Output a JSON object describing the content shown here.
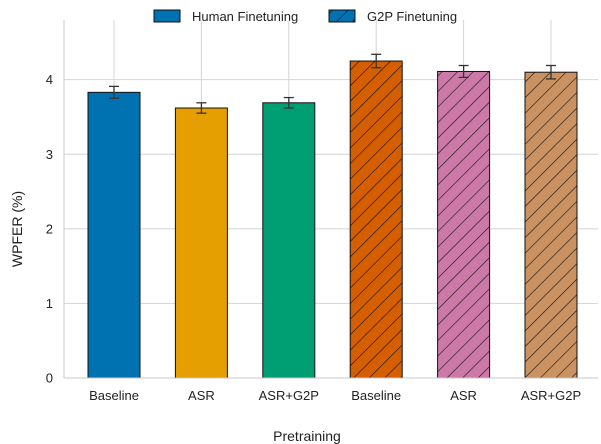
{
  "chart_data": {
    "type": "bar",
    "title": "",
    "xlabel": "Pretraining",
    "ylabel": "WPFER (%)",
    "ylim": [
      0,
      4.8
    ],
    "yticks": [
      0,
      1,
      2,
      3,
      4
    ],
    "grid": "horizontal",
    "legend_placement": "top-center",
    "legend": [
      {
        "label": "Human Finetuning",
        "hatched": false,
        "color": "#0072B2"
      },
      {
        "label": "G2P Finetuning",
        "hatched": true,
        "color": "#0072B2"
      }
    ],
    "bars": [
      {
        "category": "Baseline",
        "value": 3.83,
        "error": 0.08,
        "color": "#0072B2",
        "hatched": false,
        "group": "Human Finetuning"
      },
      {
        "category": "ASR",
        "value": 3.62,
        "error": 0.07,
        "color": "#E69F00",
        "hatched": false,
        "group": "Human Finetuning"
      },
      {
        "category": "ASR+G2P",
        "value": 3.69,
        "error": 0.07,
        "color": "#009E73",
        "hatched": false,
        "group": "Human Finetuning"
      },
      {
        "category": "Baseline",
        "value": 4.25,
        "error": 0.09,
        "color": "#D55E00",
        "hatched": true,
        "group": "G2P Finetuning"
      },
      {
        "category": "ASR",
        "value": 4.11,
        "error": 0.08,
        "color": "#CC79A7",
        "hatched": true,
        "group": "G2P Finetuning"
      },
      {
        "category": "ASR+G2P",
        "value": 4.1,
        "error": 0.09,
        "color": "#CA9161",
        "hatched": true,
        "group": "G2P Finetuning"
      }
    ]
  }
}
